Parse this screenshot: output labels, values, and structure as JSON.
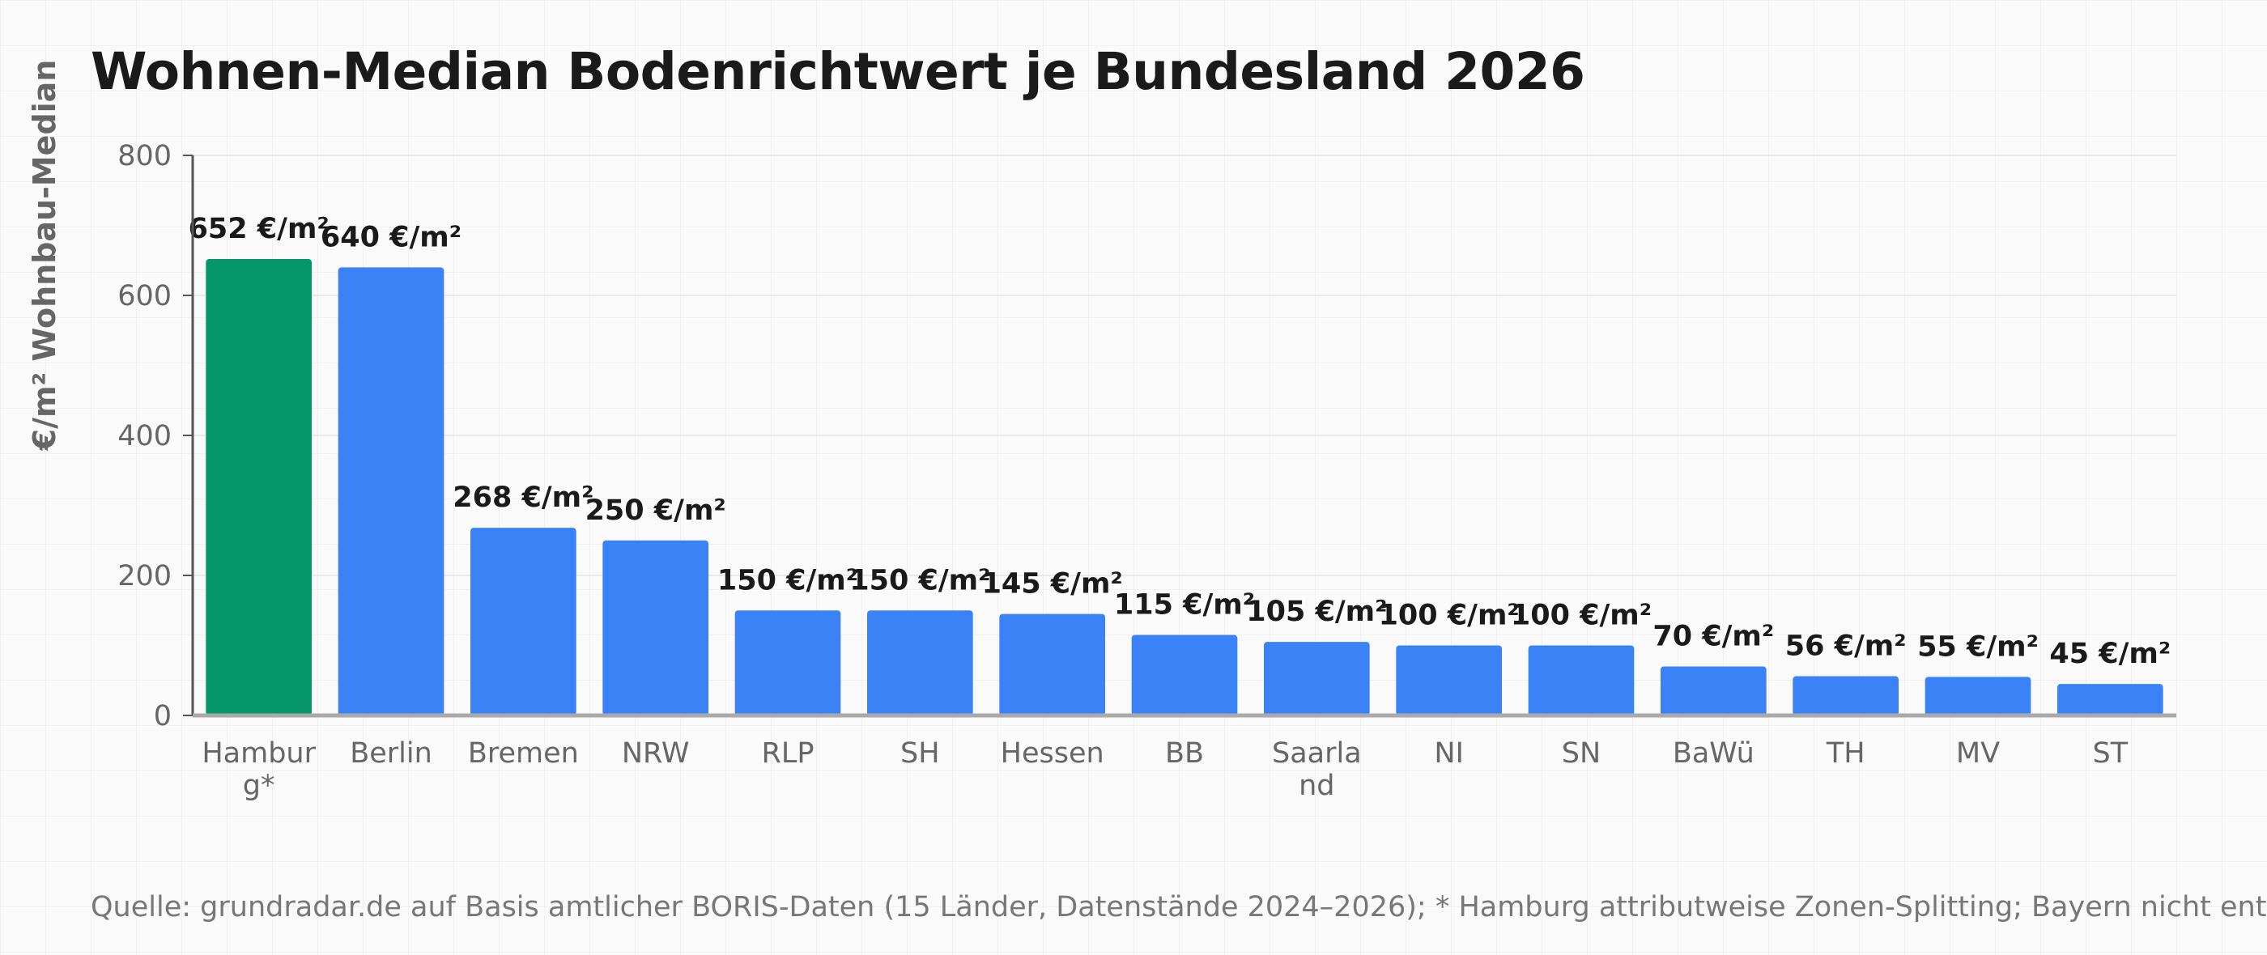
{
  "title": "Wohnen-Median Bodenrichtwert je Bundesland 2026",
  "source": "Quelle: grundradar.de auf Basis amtlicher BORIS-Daten (15 Länder, Datenstände 2024–2026); * Hamburg attributweise Zonen-Splitting; Bayern nicht enthalten",
  "colors": {
    "highlight": "#05976a",
    "bar": "#3b82f6",
    "grid": "#e3e3e3",
    "axis": "#555555"
  },
  "chart_data": {
    "type": "bar",
    "title": "Wohnen-Median Bodenrichtwert je Bundesland 2026",
    "xlabel": "",
    "ylabel": "€/m² Wohnbau-Median",
    "ylim": [
      0,
      800
    ],
    "yticks": [
      0,
      200,
      400,
      600,
      800
    ],
    "grid": true,
    "categories": [
      "Hamburg*",
      "Berlin",
      "Bremen",
      "NRW",
      "RLP",
      "SH",
      "Hessen",
      "BB",
      "Saarland",
      "NI",
      "SN",
      "BaWü",
      "TH",
      "MV",
      "ST"
    ],
    "values": [
      652,
      640,
      268,
      250,
      150,
      150,
      145,
      115,
      105,
      100,
      100,
      70,
      56,
      55,
      45
    ],
    "value_labels": [
      "652 €/m²",
      "640 €/m²",
      "268 €/m²",
      "250 €/m²",
      "150 €/m²",
      "150 €/m²",
      "145 €/m²",
      "115 €/m²",
      "105 €/m²",
      "100 €/m²",
      "100 €/m²",
      "70 €/m²",
      "56 €/m²",
      "55 €/m²",
      "45 €/m²"
    ],
    "highlight_index": 0
  }
}
